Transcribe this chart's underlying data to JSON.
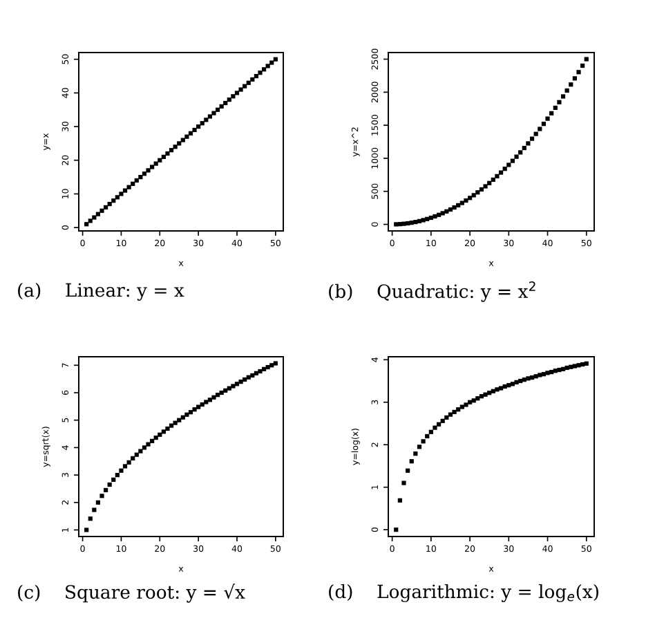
{
  "chart_data": [
    {
      "type": "scatter",
      "xlabel": "x",
      "ylabel": "y=x",
      "marker": "square",
      "grid": false,
      "annotations": [
        "(a)    Linear: y = x"
      ],
      "x": [
        1,
        2,
        3,
        4,
        5,
        6,
        7,
        8,
        9,
        10,
        11,
        12,
        13,
        14,
        15,
        16,
        17,
        18,
        19,
        20,
        21,
        22,
        23,
        24,
        25,
        26,
        27,
        28,
        29,
        30,
        31,
        32,
        33,
        34,
        35,
        36,
        37,
        38,
        39,
        40,
        41,
        42,
        43,
        44,
        45,
        46,
        47,
        48,
        49,
        50
      ],
      "series": [
        {
          "color": "#000000",
          "values": [
            1,
            2,
            3,
            4,
            5,
            6,
            7,
            8,
            9,
            10,
            11,
            12,
            13,
            14,
            15,
            16,
            17,
            18,
            19,
            20,
            21,
            22,
            23,
            24,
            25,
            26,
            27,
            28,
            29,
            30,
            31,
            32,
            33,
            34,
            35,
            36,
            37,
            38,
            39,
            40,
            41,
            42,
            43,
            44,
            45,
            46,
            47,
            48,
            49,
            50
          ]
        }
      ],
      "xlim": [
        -1,
        52
      ],
      "xticks": [
        0,
        10,
        20,
        30,
        40,
        50
      ],
      "ylim": [
        -1,
        52
      ],
      "yticks": [
        0,
        10,
        20,
        30,
        40,
        50
      ]
    },
    {
      "type": "scatter",
      "xlabel": "x",
      "ylabel": "y=x^2",
      "marker": "square",
      "grid": false,
      "annotations": [
        "(b)    Quadratic: y = x$^{2}$"
      ],
      "x": [
        1,
        2,
        3,
        4,
        5,
        6,
        7,
        8,
        9,
        10,
        11,
        12,
        13,
        14,
        15,
        16,
        17,
        18,
        19,
        20,
        21,
        22,
        23,
        24,
        25,
        26,
        27,
        28,
        29,
        30,
        31,
        32,
        33,
        34,
        35,
        36,
        37,
        38,
        39,
        40,
        41,
        42,
        43,
        44,
        45,
        46,
        47,
        48,
        49,
        50
      ],
      "series": [
        {
          "color": "#000000",
          "values": [
            1,
            4,
            9,
            16,
            25,
            36,
            49,
            64,
            81,
            100,
            121,
            144,
            169,
            196,
            225,
            256,
            289,
            324,
            361,
            400,
            441,
            484,
            529,
            576,
            625,
            676,
            729,
            784,
            841,
            900,
            961,
            1024,
            1089,
            1156,
            1225,
            1296,
            1369,
            1444,
            1521,
            1600,
            1681,
            1764,
            1849,
            1936,
            2025,
            2116,
            2209,
            2304,
            2401,
            2500
          ]
        }
      ],
      "xlim": [
        -1,
        52
      ],
      "xticks": [
        0,
        10,
        20,
        30,
        40,
        50
      ],
      "ylim": [
        -99,
        2600
      ],
      "yticks": [
        0,
        500,
        1000,
        1500,
        2000,
        2500
      ]
    },
    {
      "type": "scatter",
      "xlabel": "x",
      "ylabel": "y=sqrt(x)",
      "marker": "square",
      "grid": false,
      "annotations": [
        "(c)    Square root: y = √x"
      ],
      "x": [
        1,
        2,
        3,
        4,
        5,
        6,
        7,
        8,
        9,
        10,
        11,
        12,
        13,
        14,
        15,
        16,
        17,
        18,
        19,
        20,
        21,
        22,
        23,
        24,
        25,
        26,
        27,
        28,
        29,
        30,
        31,
        32,
        33,
        34,
        35,
        36,
        37,
        38,
        39,
        40,
        41,
        42,
        43,
        44,
        45,
        46,
        47,
        48,
        49,
        50
      ],
      "series": [
        {
          "color": "#000000",
          "values": [
            1,
            1.41,
            1.73,
            2,
            2.24,
            2.45,
            2.65,
            2.83,
            3,
            3.16,
            3.32,
            3.46,
            3.61,
            3.74,
            3.87,
            4,
            4.12,
            4.24,
            4.36,
            4.47,
            4.58,
            4.69,
            4.8,
            4.9,
            5,
            5.1,
            5.2,
            5.29,
            5.39,
            5.48,
            5.57,
            5.66,
            5.74,
            5.83,
            5.92,
            6,
            6.08,
            6.16,
            6.24,
            6.32,
            6.4,
            6.48,
            6.56,
            6.63,
            6.71,
            6.78,
            6.86,
            6.93,
            7,
            7.07
          ]
        }
      ],
      "xlim": [
        -1,
        52
      ],
      "xticks": [
        0,
        10,
        20,
        30,
        40,
        50
      ],
      "ylim": [
        0.76,
        7.31
      ],
      "yticks": [
        1,
        2,
        3,
        4,
        5,
        6,
        7
      ]
    },
    {
      "type": "scatter",
      "xlabel": "x",
      "ylabel": "y=log(x)",
      "marker": "square",
      "grid": false,
      "annotations": [
        "(d)    Logarithmic: y = log$_{e}$(x)"
      ],
      "x": [
        1,
        2,
        3,
        4,
        5,
        6,
        7,
        8,
        9,
        10,
        11,
        12,
        13,
        14,
        15,
        16,
        17,
        18,
        19,
        20,
        21,
        22,
        23,
        24,
        25,
        26,
        27,
        28,
        29,
        30,
        31,
        32,
        33,
        34,
        35,
        36,
        37,
        38,
        39,
        40,
        41,
        42,
        43,
        44,
        45,
        46,
        47,
        48,
        49,
        50
      ],
      "series": [
        {
          "color": "#000000",
          "values": [
            0,
            0.69,
            1.1,
            1.39,
            1.61,
            1.79,
            1.95,
            2.08,
            2.2,
            2.3,
            2.4,
            2.48,
            2.56,
            2.64,
            2.71,
            2.77,
            2.83,
            2.89,
            2.94,
            3,
            3.04,
            3.09,
            3.14,
            3.18,
            3.22,
            3.26,
            3.3,
            3.33,
            3.37,
            3.4,
            3.43,
            3.47,
            3.5,
            3.53,
            3.56,
            3.58,
            3.61,
            3.64,
            3.66,
            3.69,
            3.71,
            3.74,
            3.76,
            3.78,
            3.81,
            3.83,
            3.85,
            3.87,
            3.89,
            3.91
          ]
        }
      ],
      "xlim": [
        -1,
        52
      ],
      "xticks": [
        0,
        10,
        20,
        30,
        40,
        50
      ],
      "ylim": [
        -0.16,
        4.07
      ],
      "yticks": [
        0,
        1,
        2,
        3,
        4
      ]
    }
  ]
}
